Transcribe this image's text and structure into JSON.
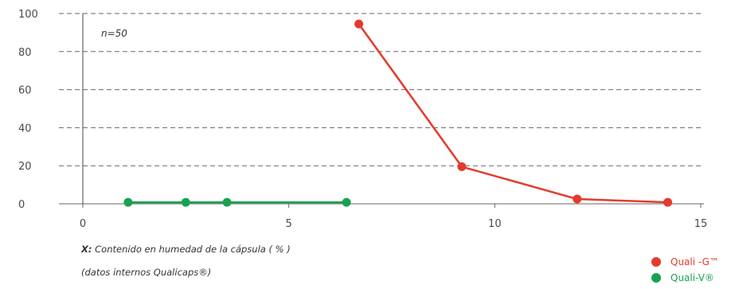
{
  "chart_data": {
    "type": "line",
    "title": "",
    "xlabel_prefix": "X:",
    "xlabel": "Contenido en humedad de la cápsula ( % )",
    "source_note": "(datos internos Qualicaps®)",
    "annotation": "n=50",
    "xlim": [
      0,
      15
    ],
    "ylim": [
      0,
      100
    ],
    "x_ticks": [
      0,
      5,
      10,
      15
    ],
    "y_ticks": [
      0,
      20,
      40,
      60,
      80,
      100
    ],
    "grid": "horizontal dashed",
    "legend_position": "bottom-right",
    "series": [
      {
        "name": "Quali -G™",
        "color": "#e53a2c",
        "points": [
          [
            6.7,
            94.5
          ],
          [
            9.2,
            19.5
          ],
          [
            12.0,
            2.5
          ],
          [
            14.2,
            0.8
          ]
        ]
      },
      {
        "name": "Quali-V®",
        "color": "#17a251",
        "points": [
          [
            1.1,
            0.8
          ],
          [
            2.5,
            0.8
          ],
          [
            3.5,
            0.8
          ],
          [
            6.4,
            0.8
          ]
        ]
      }
    ]
  }
}
